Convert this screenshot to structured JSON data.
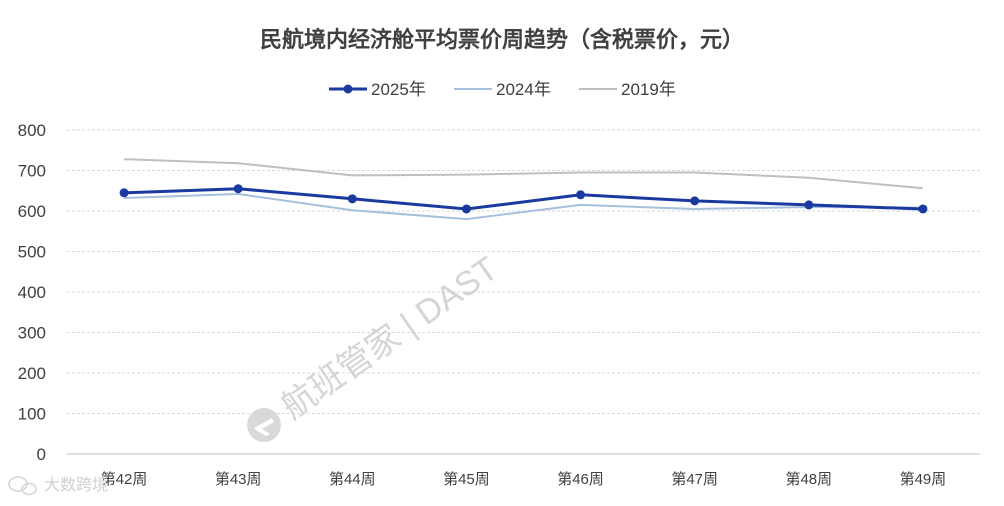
{
  "chart_data": {
    "type": "line",
    "title": "民航境内经济舱平均票价周趋势（含税票价，元）",
    "categories": [
      "第42周",
      "第43周",
      "第44周",
      "第45周",
      "第46周",
      "第47周",
      "第48周",
      "第49周"
    ],
    "series": [
      {
        "name": "2025年",
        "values": [
          645,
          655,
          630,
          605,
          640,
          625,
          615,
          605
        ],
        "color": "#1a3aa0",
        "markers": true
      },
      {
        "name": "2024年",
        "values": [
          632,
          642,
          602,
          580,
          615,
          605,
          610,
          608
        ],
        "color": "#a6bfdc",
        "markers": false
      },
      {
        "name": "2019年",
        "values": [
          728,
          718,
          688,
          690,
          695,
          695,
          682,
          656
        ],
        "color": "#bfbfbf",
        "markers": false
      }
    ],
    "ylim": [
      0,
      800
    ],
    "yticks": [
      "0",
      "100",
      "200",
      "300",
      "400",
      "500",
      "600",
      "700",
      "800"
    ],
    "grid": true,
    "legend_position": "top"
  },
  "watermark": {
    "text": "航班管家 | DAST",
    "icon": "plane-logo-icon"
  },
  "corner_watermark": {
    "text": "大数跨境",
    "icon": "wechat-icon"
  }
}
